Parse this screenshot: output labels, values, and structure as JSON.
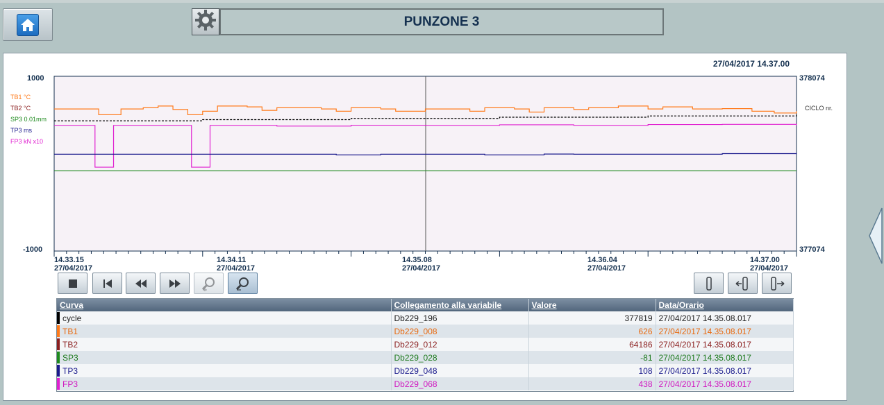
{
  "header": {
    "title": "PUNZONE 3",
    "home_icon": "home-icon",
    "settings_icon": "gear-icon"
  },
  "panel": {
    "datetime": "27/04/2017 14.37.00",
    "ciclo_label": "CICLO nr."
  },
  "chart_data": {
    "type": "line",
    "left_axis": {
      "max_label": "1000",
      "min_label": "-1000",
      "ylim": [
        -1000,
        1000
      ]
    },
    "right_axis": {
      "max_label": "378074",
      "min_label": "377074",
      "ylim": [
        377074,
        378074
      ]
    },
    "legend": [
      {
        "label": "TB1 °C",
        "color": "#ff7a1a"
      },
      {
        "label": "TB2 °C",
        "color": "#8b2020"
      },
      {
        "label": "SP3 0.01mm",
        "color": "#1e8a1e"
      },
      {
        "label": "TP3 ms",
        "color": "#1a1a8c"
      },
      {
        "label": "FP3 kN x10",
        "color": "#e020d0"
      }
    ],
    "x_ticks": [
      {
        "time": "14.33.15",
        "date": "27/04/2017"
      },
      {
        "time": "14.34.11",
        "date": "27/04/2017"
      },
      {
        "time": "14.35.08",
        "date": "27/04/2017"
      },
      {
        "time": "14.36.04",
        "date": "27/04/2017"
      },
      {
        "time": "14.37.00",
        "date": "27/04/2017"
      }
    ],
    "series": [
      {
        "name": "TB1",
        "color": "#ff7a1a",
        "x": [
          0,
          0.05,
          0.06,
          0.08,
          0.09,
          0.12,
          0.14,
          0.16,
          0.18,
          0.2,
          0.22,
          0.26,
          0.28,
          0.3,
          0.36,
          0.38,
          0.4,
          0.44,
          0.46,
          0.5,
          0.52,
          0.56,
          0.58,
          0.62,
          0.64,
          0.66,
          0.7,
          0.72,
          0.76,
          0.8,
          0.82,
          0.86,
          0.9,
          0.94,
          0.97,
          1.0
        ],
        "values": [
          626,
          626,
          560,
          560,
          626,
          640,
          660,
          620,
          560,
          600,
          660,
          650,
          610,
          640,
          626,
          600,
          640,
          626,
          600,
          626,
          626,
          600,
          640,
          626,
          590,
          640,
          620,
          640,
          660,
          626,
          650,
          626,
          630,
          600,
          580,
          600
        ]
      },
      {
        "name": "cycle",
        "color": "#000000",
        "dashed": true,
        "x": [
          0,
          0.2,
          0.4,
          0.6,
          0.8,
          1.0
        ],
        "values": [
          377819,
          377826,
          377833,
          377840,
          377847,
          377854
        ]
      },
      {
        "name": "FP3",
        "color": "#e020d0",
        "x": [
          0,
          0.05,
          0.055,
          0.075,
          0.08,
          0.18,
          0.185,
          0.205,
          0.21,
          0.25,
          0.3,
          0.4,
          0.5,
          0.6,
          0.7,
          0.8,
          0.9,
          1.0
        ],
        "values": [
          438,
          438,
          -40,
          -40,
          438,
          438,
          -40,
          -40,
          438,
          438,
          430,
          440,
          438,
          445,
          438,
          448,
          450,
          440
        ]
      },
      {
        "name": "TP3",
        "color": "#1a1a8c",
        "x": [
          0,
          0.1,
          0.2,
          0.3,
          0.36,
          0.38,
          0.42,
          0.44,
          0.5,
          0.56,
          0.58,
          0.64,
          0.66,
          0.7,
          0.76,
          0.8,
          0.9,
          1.0
        ],
        "values": [
          108,
          108,
          108,
          108,
          108,
          100,
          100,
          108,
          108,
          108,
          100,
          100,
          110,
          108,
          108,
          108,
          115,
          108
        ]
      },
      {
        "name": "SP3",
        "color": "#1e8a1e",
        "x": [
          0,
          1.0
        ],
        "values": [
          -81,
          -81
        ]
      }
    ]
  },
  "toolbar": {
    "stop_icon": "stop-icon",
    "first_icon": "skip-back-icon",
    "rewind_icon": "rewind-icon",
    "forward_icon": "fast-forward-icon",
    "zoom_in_icon": "zoom-in-icon",
    "zoom_out_icon": "zoom-out-icon",
    "ruler_icon": "ruler-icon",
    "ruler_left_icon": "ruler-left-icon",
    "ruler_right_icon": "ruler-right-icon"
  },
  "table": {
    "headers": [
      "Curva",
      "Collegamento alla variabile",
      "Valore",
      "Data/Orario"
    ],
    "rows": [
      {
        "curve": "cycle",
        "variable": "Db229_196",
        "value": "377819",
        "datetime": "27/04/2017 14.35.08.017",
        "color": "#000000",
        "text_color": "#222222"
      },
      {
        "curve": "TB1",
        "variable": "Db229_008",
        "value": "626",
        "datetime": "27/04/2017 14.35.08.017",
        "color": "#ff7a1a",
        "text_color": "#e86a10"
      },
      {
        "curve": "TB2",
        "variable": "Db229_012",
        "value": "64186",
        "datetime": "27/04/2017 14.35.08.017",
        "color": "#8b2020",
        "text_color": "#8b2020"
      },
      {
        "curve": "SP3",
        "variable": "Db229_028",
        "value": "-81",
        "datetime": "27/04/2017 14.35.08.017",
        "color": "#1e8a1e",
        "text_color": "#1e7a1e"
      },
      {
        "curve": "TP3",
        "variable": "Db229_048",
        "value": "108",
        "datetime": "27/04/2017 14.35.08.017",
        "color": "#1a1a8c",
        "text_color": "#1a1a8c"
      },
      {
        "curve": "FP3",
        "variable": "Db229_068",
        "value": "438",
        "datetime": "27/04/2017 14.35.08.017",
        "color": "#e020d0",
        "text_color": "#d018c0"
      }
    ]
  }
}
